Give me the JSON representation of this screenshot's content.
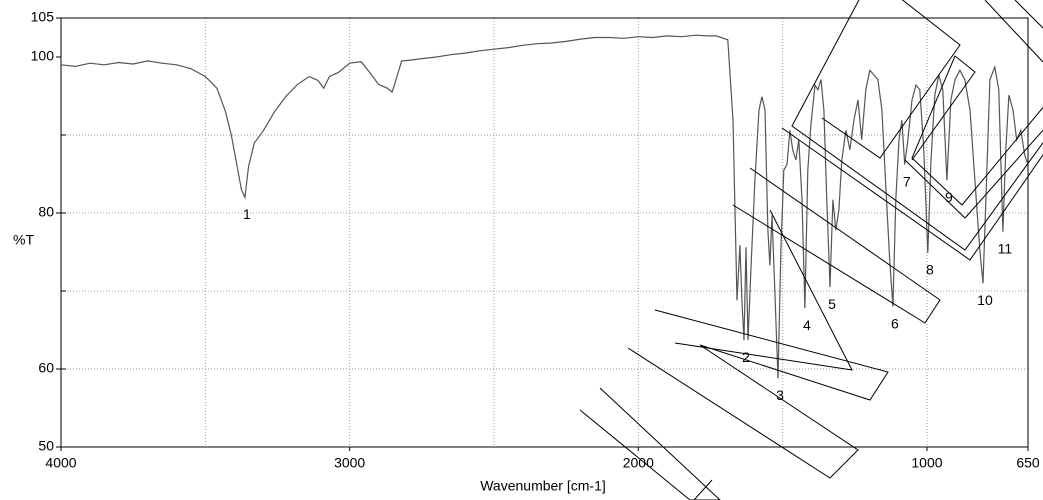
{
  "chart_data": {
    "type": "line",
    "x_label": "Wavenumber [cm-1]",
    "y_label": "%T",
    "xlim": [
      4000,
      650
    ],
    "ylim": [
      50,
      105
    ],
    "xticks": [
      4000,
      3000,
      2000,
      1000,
      650
    ],
    "yticks": [
      50,
      60,
      80,
      100,
      105
    ],
    "xgrid": [
      3500,
      3000,
      2500,
      2000,
      1500,
      1000
    ],
    "ygrid": [
      60,
      70,
      80,
      90
    ],
    "grid": true,
    "series": [
      {
        "color": "#555555",
        "x": [
          4000,
          3950,
          3900,
          3850,
          3800,
          3750,
          3700,
          3650,
          3600,
          3550,
          3500,
          3460,
          3430,
          3410,
          3390,
          3375,
          3363,
          3350,
          3330,
          3300,
          3260,
          3220,
          3180,
          3140,
          3110,
          3090,
          3070,
          3040,
          3000,
          2960,
          2930,
          2900,
          2870,
          2853,
          2840,
          2820,
          2790,
          2750,
          2700,
          2650,
          2600,
          2550,
          2500,
          2450,
          2400,
          2350,
          2300,
          2250,
          2200,
          2150,
          2100,
          2050,
          2000,
          1950,
          1900,
          1850,
          1800,
          1760,
          1730,
          1690,
          1672,
          1658,
          1648,
          1641,
          1634,
          1627,
          1620,
          1610,
          1596,
          1582,
          1572,
          1561,
          1551,
          1544,
          1537,
          1527,
          1516,
          1506,
          1496,
          1485,
          1475,
          1465,
          1454,
          1444,
          1433,
          1423,
          1413,
          1402,
          1388,
          1378,
          1367,
          1357,
          1347,
          1336,
          1326,
          1316,
          1305,
          1295,
          1281,
          1267,
          1253,
          1239,
          1226,
          1212,
          1198,
          1184,
          1170,
          1156,
          1142,
          1129,
          1118,
          1108,
          1097,
          1087,
          1077,
          1066,
          1052,
          1038,
          1025,
          1011,
          997,
          986,
          973,
          959,
          945,
          931,
          917,
          903,
          886,
          869,
          851,
          834,
          817,
          806,
          796,
          782,
          765,
          751,
          737,
          727,
          716,
          702,
          689,
          675,
          661,
          650
        ],
        "values": [
          99,
          98.8,
          99.2,
          99,
          99.3,
          99.1,
          99.5,
          99.2,
          99,
          98.5,
          97.5,
          96,
          93,
          90,
          86,
          83,
          82,
          86,
          89,
          90.5,
          93,
          95,
          96.5,
          97.5,
          97,
          96,
          97.5,
          98,
          99.2,
          99.4,
          98,
          96.5,
          96,
          95.5,
          97,
          99.5,
          99.6,
          99.8,
          100,
          100.3,
          100.5,
          100.8,
          101,
          101.2,
          101.5,
          101.7,
          101.8,
          102,
          102.3,
          102.5,
          102.5,
          102.4,
          102.6,
          102.5,
          102.7,
          102.6,
          102.8,
          102.7,
          102.7,
          102.2,
          91.9,
          68.8,
          75.9,
          68.8,
          63.7,
          75.6,
          63.7,
          72.7,
          84.2,
          93.2,
          94.9,
          93.2,
          77.8,
          73.3,
          79.7,
          70.1,
          58.8,
          75.3,
          85.5,
          86.2,
          90.6,
          88.1,
          86.8,
          89.4,
          81.7,
          67.8,
          85.5,
          91.3,
          96.4,
          95.8,
          97.1,
          93.2,
          81.7,
          70.5,
          81.7,
          77.8,
          80.4,
          86.8,
          90.6,
          88.1,
          91.9,
          94.5,
          89.4,
          95.8,
          98.3,
          97.7,
          97.1,
          93.2,
          82.9,
          74,
          68,
          81.7,
          89.4,
          91.9,
          86.2,
          89.4,
          94.5,
          96.4,
          95.8,
          88.1,
          74.9,
          86.8,
          95.1,
          97.7,
          95.8,
          84.2,
          94.5,
          97.1,
          98.3,
          97.1,
          93.2,
          84.2,
          75.3,
          71,
          81.7,
          97.1,
          98.7,
          95.8,
          77.6,
          88.1,
          95.1,
          93.2,
          89.4,
          90.6,
          87.4,
          86.2
        ]
      }
    ],
    "annotations": [
      {
        "text": "1",
        "x": 3363,
        "y": 82
      },
      {
        "text": "2",
        "x": 1634,
        "y": 63.7
      },
      {
        "text": "3",
        "x": 1516,
        "y": 58.8
      },
      {
        "text": "4",
        "x": 1423,
        "y": 67.8
      },
      {
        "text": "5",
        "x": 1336,
        "y": 70.5
      },
      {
        "text": "6",
        "x": 1118,
        "y": 68
      },
      {
        "text": "7",
        "x": 1077,
        "y": 86.2
      },
      {
        "text": "8",
        "x": 997,
        "y": 74.9
      },
      {
        "text": "9",
        "x": 931,
        "y": 84.2
      },
      {
        "text": "10",
        "x": 806,
        "y": 71
      },
      {
        "text": "11",
        "x": 737,
        "y": 77.6
      }
    ]
  }
}
